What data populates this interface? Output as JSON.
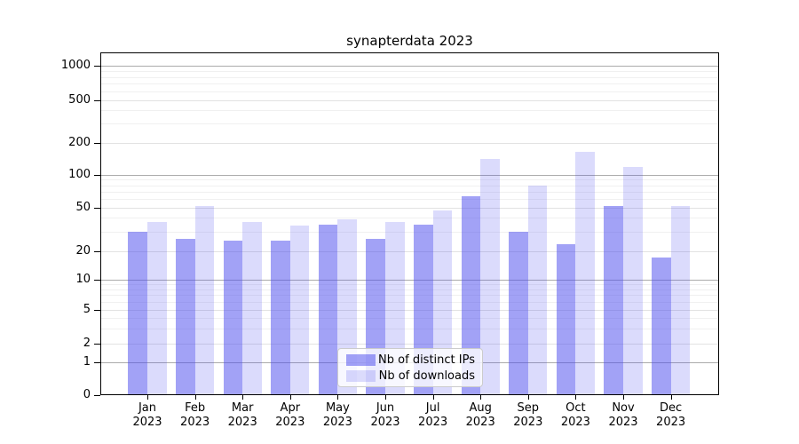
{
  "chart_data": {
    "type": "bar",
    "title": "synapterdata 2023",
    "categories": [
      "Jan 2023",
      "Feb 2023",
      "Mar 2023",
      "Apr 2023",
      "May 2023",
      "Jun 2023",
      "Jul 2023",
      "Aug 2023",
      "Sep 2023",
      "Oct 2023",
      "Nov 2023",
      "Dec 2023"
    ],
    "series": [
      {
        "name": "Nb of distinct IPs",
        "color": "rgba(77,77,238,0.52)",
        "values": [
          30,
          26,
          25,
          25,
          35,
          26,
          35,
          63,
          30,
          23,
          51,
          17
        ]
      },
      {
        "name": "Nb of downloads",
        "color": "rgba(77,77,238,0.20)",
        "values": [
          37,
          51,
          37,
          34,
          39,
          37,
          47,
          140,
          79,
          165,
          118,
          51
        ]
      }
    ],
    "xlabel": "",
    "ylabel": "",
    "yscale": "symlog",
    "yticks": [
      0,
      1,
      2,
      5,
      10,
      20,
      50,
      100,
      200,
      500,
      1000
    ],
    "ylim": [
      0,
      1350
    ],
    "grid": true,
    "legend_position": "lower center"
  }
}
